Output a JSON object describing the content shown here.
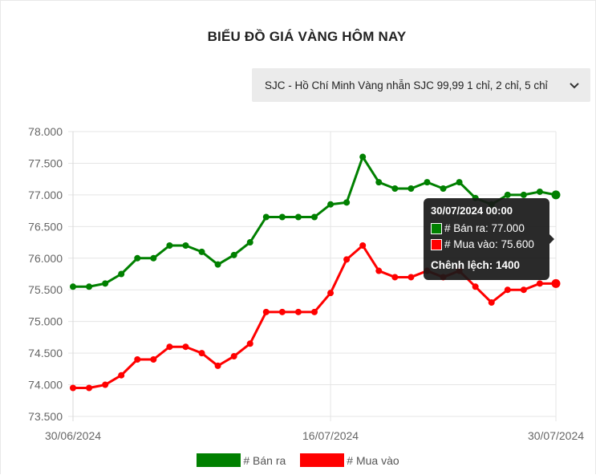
{
  "page": {
    "title": "BIỂU ĐỒ GIÁ VÀNG HÔM NAY"
  },
  "select": {
    "value": "SJC - Hồ Chí Minh Vàng nhẫn SJC 99,99 1 chỉ, 2 chỉ, 5 chỉ",
    "icon": "chevron-down-icon"
  },
  "colors": {
    "ban_ra": "#008000",
    "mua_vao": "#ff0000",
    "grid": "#e5e5e5",
    "axis_text": "#666666"
  },
  "chart_data": {
    "type": "line",
    "xlabel": "",
    "ylabel": "",
    "ylim": [
      73500,
      78000
    ],
    "y_ticks": [
      "73.500",
      "74.000",
      "74.500",
      "75.000",
      "75.500",
      "76.000",
      "76.500",
      "77.000",
      "77.500",
      "78.000"
    ],
    "x_tick_labels": [
      "30/06/2024",
      "16/07/2024",
      "30/07/2024"
    ],
    "x_tick_index": [
      0,
      16,
      30
    ],
    "series": [
      {
        "name": "# Bán ra",
        "color": "#008000",
        "values": [
          75550,
          75550,
          75600,
          75750,
          76000,
          76000,
          76200,
          76200,
          76100,
          75900,
          76050,
          76250,
          76650,
          76650,
          76650,
          76650,
          76850,
          76880,
          77600,
          77200,
          77100,
          77100,
          77200,
          77100,
          77200,
          76950,
          76850,
          77000,
          77000,
          77050,
          77000
        ]
      },
      {
        "name": "# Mua vào",
        "color": "#ff0000",
        "values": [
          73950,
          73950,
          74000,
          74150,
          74400,
          74400,
          74600,
          74600,
          74500,
          74300,
          74450,
          74650,
          75150,
          75150,
          75150,
          75150,
          75450,
          75980,
          76200,
          75800,
          75700,
          75700,
          75800,
          75700,
          75800,
          75550,
          75300,
          75500,
          75500,
          75600,
          75600
        ]
      }
    ],
    "legend_position": "bottom",
    "grid": true
  },
  "tooltip": {
    "title": "30/07/2024 00:00",
    "ban_ra": "# Bán ra: 77.000",
    "mua_vao": "# Mua vào: 75.600",
    "chenh_lech": "Chênh lệch: 1400"
  },
  "legend": {
    "ban_ra": "# Bán ra",
    "mua_vao": "# Mua vào"
  }
}
